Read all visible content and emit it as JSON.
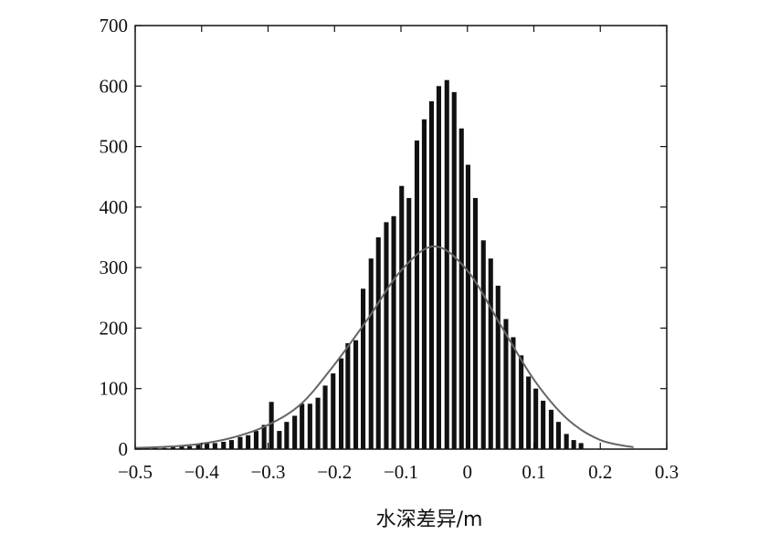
{
  "chart_data": {
    "type": "bar",
    "title": "",
    "xlabel": "水深差异/m",
    "ylabel": "",
    "xlim": [
      -0.5,
      0.3
    ],
    "ylim": [
      0,
      700
    ],
    "grid": false,
    "legend": "none",
    "x_ticks": [
      "−0.5",
      "−0.4",
      "−0.3",
      "−0.2",
      "−0.1",
      "0",
      "0.1",
      "0.2",
      "0.3"
    ],
    "y_ticks": [
      "0",
      "100",
      "200",
      "300",
      "400",
      "500",
      "600",
      "700"
    ],
    "bar_width": 0.007,
    "series": [
      {
        "kind": "histogram",
        "x": [
          -0.483,
          -0.47,
          -0.456,
          -0.443,
          -0.43,
          -0.418,
          -0.405,
          -0.392,
          -0.38,
          -0.367,
          -0.355,
          -0.342,
          -0.33,
          -0.318,
          -0.306,
          -0.295,
          -0.283,
          -0.272,
          -0.26,
          -0.249,
          -0.237,
          -0.225,
          -0.214,
          -0.202,
          -0.19,
          -0.18,
          -0.168,
          -0.157,
          -0.145,
          -0.134,
          -0.122,
          -0.111,
          -0.099,
          -0.088,
          -0.076,
          -0.065,
          -0.054,
          -0.043,
          -0.031,
          -0.02,
          -0.009,
          0.001,
          0.012,
          0.024,
          0.035,
          0.046,
          0.058,
          0.069,
          0.081,
          0.092,
          0.103,
          0.114,
          0.126,
          0.137,
          0.149,
          0.16,
          0.171
        ],
        "values": [
          2,
          2,
          2,
          3,
          5,
          5,
          8,
          10,
          10,
          12,
          15,
          20,
          23,
          30,
          40,
          78,
          30,
          45,
          55,
          75,
          75,
          85,
          105,
          125,
          150,
          175,
          180,
          265,
          315,
          350,
          375,
          385,
          435,
          415,
          510,
          545,
          575,
          600,
          610,
          590,
          530,
          470,
          415,
          345,
          315,
          270,
          215,
          185,
          155,
          120,
          100,
          80,
          65,
          45,
          25,
          15,
          10
        ],
        "color": "#111111"
      },
      {
        "kind": "normal-fit-curve",
        "x": [
          -0.5,
          -0.45,
          -0.4,
          -0.35,
          -0.3,
          -0.25,
          -0.2,
          -0.15,
          -0.1,
          -0.05,
          0.0,
          0.05,
          0.1,
          0.15,
          0.2,
          0.25
        ],
        "values": [
          2,
          4,
          9,
          20,
          40,
          75,
          140,
          215,
          295,
          335,
          295,
          205,
          115,
          50,
          15,
          3
        ],
        "color": "#666666"
      }
    ]
  }
}
